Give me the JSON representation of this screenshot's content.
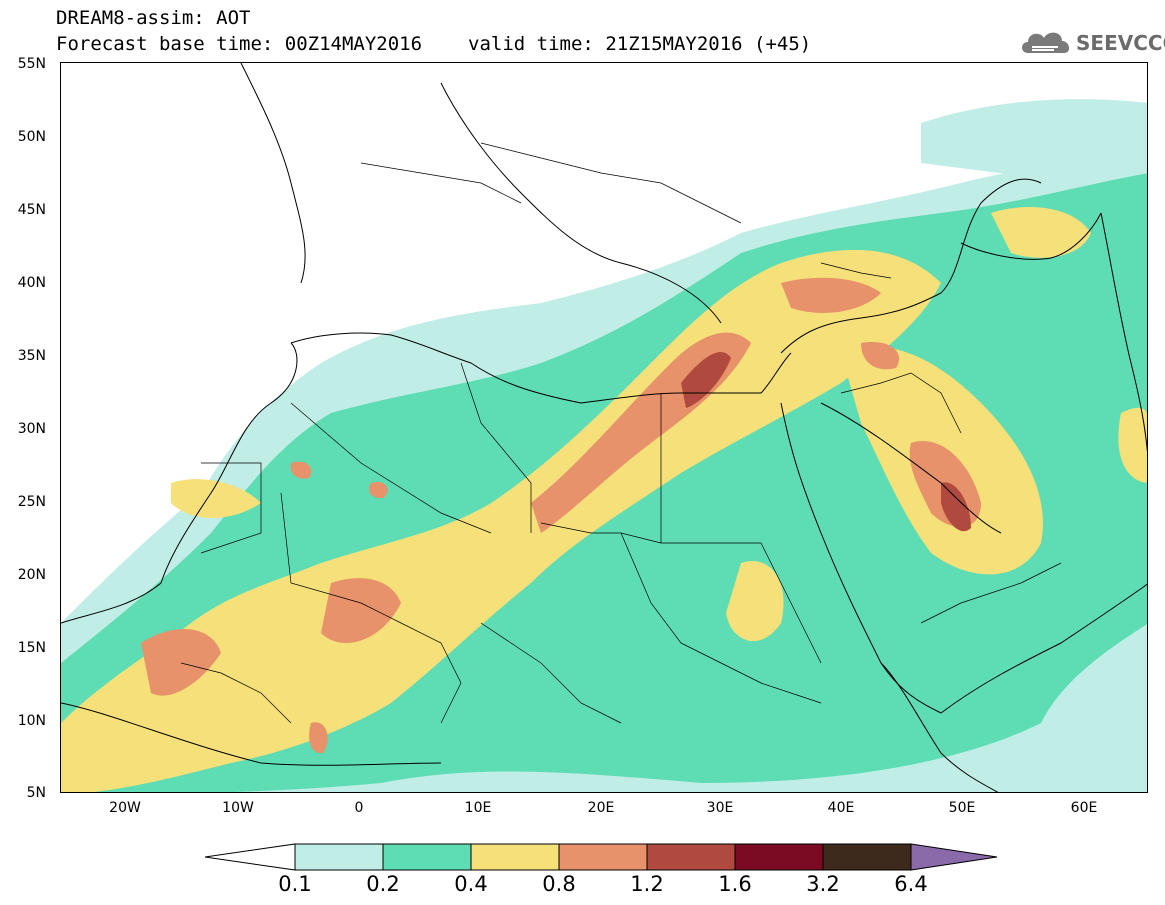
{
  "title": {
    "line1": "DREAM8-assim: AOT",
    "line2_left": "Forecast base time: 00Z14MAY2016",
    "line2_right": "valid time: 21Z15MAY2016 (+45)"
  },
  "logo": {
    "text": "SEEVCCC",
    "icon": "cloud-icon"
  },
  "map": {
    "lat_labels": [
      "55N",
      "50N",
      "45N",
      "40N",
      "35N",
      "30N",
      "25N",
      "20N",
      "15N",
      "10N",
      "5N"
    ],
    "lon_labels": [
      "20W",
      "10W",
      "0",
      "10E",
      "20E",
      "30E",
      "40E",
      "50E",
      "60E"
    ],
    "extent": {
      "lon_min": -25,
      "lon_max": 65,
      "lat_min": 5,
      "lat_max": 55
    }
  },
  "colorbar": {
    "labels": [
      "0.1",
      "0.2",
      "0.4",
      "0.8",
      "1.2",
      "1.6",
      "3.2",
      "6.4"
    ],
    "colors": [
      "#c0eee6",
      "#5edcb4",
      "#f5e07a",
      "#e7926a",
      "#b04a3e",
      "#7a0b22",
      "#3e2a1c",
      "#8a6aa8"
    ]
  }
}
